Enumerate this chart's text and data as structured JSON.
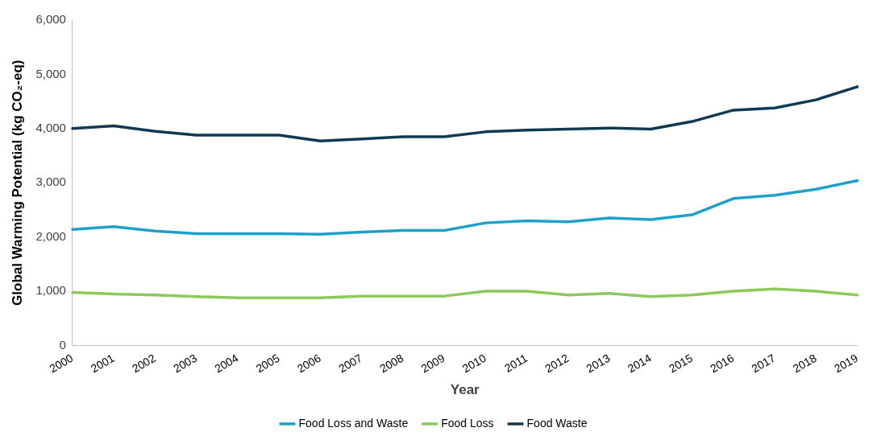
{
  "chart_data": {
    "type": "line",
    "xlabel": "Year",
    "ylabel": "Global Warming Potential (kg CO₂-eq)",
    "categories": [
      "2000",
      "2001",
      "2002",
      "2003",
      "2004",
      "2005",
      "2006",
      "2007",
      "2008",
      "2009",
      "2010",
      "2011",
      "2012",
      "2013",
      "2014",
      "2015",
      "2016",
      "2017",
      "2018",
      "2019"
    ],
    "series": [
      {
        "name": "Food Loss and Waste",
        "color": "#1fa0c8",
        "values": [
          2140,
          2190,
          2110,
          2060,
          2060,
          2060,
          2050,
          2090,
          2120,
          2120,
          2260,
          2300,
          2280,
          2350,
          2320,
          2410,
          2710,
          2770,
          2880,
          3040
        ]
      },
      {
        "name": "Food Loss",
        "color": "#8cc85a",
        "values": [
          980,
          950,
          930,
          900,
          880,
          880,
          880,
          910,
          910,
          910,
          1000,
          1000,
          930,
          960,
          900,
          930,
          1000,
          1040,
          1000,
          930
        ]
      },
      {
        "name": "Food Waste",
        "color": "#0e3a52",
        "values": [
          4000,
          4050,
          3950,
          3880,
          3880,
          3880,
          3770,
          3810,
          3850,
          3850,
          3940,
          3970,
          3990,
          4010,
          3990,
          4130,
          4340,
          4380,
          4530,
          4770
        ]
      }
    ],
    "ylim": [
      0,
      6000
    ],
    "yticks": [
      0,
      {
        "value": 1000,
        "label": "1,000"
      },
      {
        "value": 2000,
        "label": "2,000"
      },
      {
        "value": 3000,
        "label": "3,000"
      },
      {
        "value": 4000,
        "label": "4,000"
      },
      {
        "value": 5000,
        "label": "5,000"
      },
      {
        "value": 6000,
        "label": "6,000"
      }
    ],
    "grid": false,
    "legend": "bottom",
    "marker": "none",
    "line_style": "solid"
  }
}
